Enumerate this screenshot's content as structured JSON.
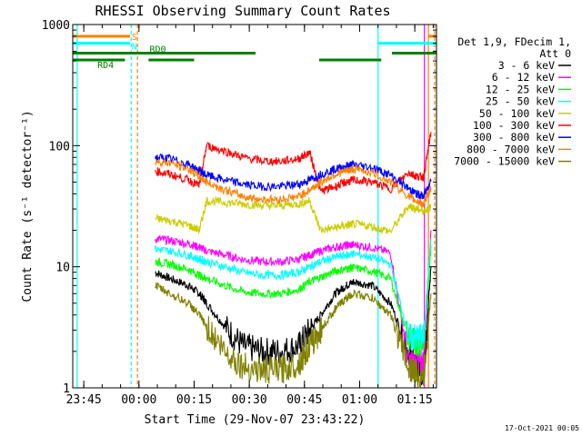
{
  "chart_data": {
    "type": "line",
    "title": "RHESSI Observing Summary Count Rates",
    "xlabel": "Start Time (29-Nov-07 23:43:22)",
    "ylabel": "Count Rate (s⁻¹ detector⁻¹)",
    "yscale": "log",
    "ylim": [
      1,
      1000
    ],
    "xlim_minutes": [
      -1.4,
      97.5
    ],
    "yticks": [
      1,
      10,
      100,
      1000
    ],
    "ytick_labels": [
      "1",
      "10",
      "100",
      "1000"
    ],
    "xticks_minutes": [
      1.6,
      16.6,
      31.6,
      46.6,
      61.6,
      76.6,
      91.6
    ],
    "xtick_labels": [
      "23:45",
      "00:00",
      "00:15",
      "00:30",
      "00:45",
      "01:00",
      "01:15"
    ],
    "grid": false,
    "legend_position": "right",
    "legend_header": [
      "Det 1,9, FDecim 1,",
      "Att 0"
    ],
    "series": [
      {
        "name": "3 - 6 keV",
        "color": "#000000",
        "x": [
          21,
          25,
          30,
          33,
          35,
          40,
          45,
          50,
          55,
          60,
          63,
          66,
          70,
          73,
          75,
          80,
          85,
          90,
          92,
          94,
          96
        ],
        "y": [
          9,
          8,
          7,
          6,
          5,
          3.2,
          2.2,
          2,
          2,
          2.2,
          3,
          4,
          6,
          7,
          7.5,
          7,
          5,
          2,
          1.5,
          1.3,
          10
        ]
      },
      {
        "name": "6 - 12 keV",
        "color": "#ff00ff",
        "x": [
          21,
          25,
          30,
          33,
          35,
          40,
          45,
          50,
          55,
          60,
          63,
          66,
          70,
          73,
          75,
          80,
          85,
          90,
          92,
          94,
          96
        ],
        "y": [
          17,
          16.5,
          15.5,
          14.5,
          13.5,
          12.5,
          11.5,
          11,
          11,
          11.5,
          12.5,
          13.5,
          14.5,
          15,
          15.2,
          14.5,
          13,
          1.6,
          1.6,
          1.6,
          20
        ]
      },
      {
        "name": "12 - 25 keV",
        "color": "#00ff00",
        "x": [
          21,
          25,
          30,
          33,
          35,
          40,
          45,
          50,
          55,
          60,
          63,
          66,
          70,
          73,
          75,
          80,
          85,
          90,
          92,
          94,
          96
        ],
        "y": [
          11,
          10.5,
          9.5,
          8.5,
          8,
          7,
          6.2,
          6,
          6,
          6.5,
          7.5,
          8.2,
          9.2,
          9.6,
          9.8,
          9.2,
          8,
          2.5,
          2.4,
          2.3,
          15
        ]
      },
      {
        "name": "25 - 50 keV",
        "color": "#00ffff",
        "x": [
          21,
          25,
          30,
          33,
          35,
          40,
          45,
          50,
          55,
          60,
          63,
          66,
          70,
          73,
          75,
          80,
          85,
          90,
          92,
          94,
          96
        ],
        "y": [
          14,
          13.5,
          12.5,
          11.5,
          11,
          10,
          9,
          8.5,
          8.5,
          9,
          10,
          11,
          12,
          12.5,
          12.8,
          12,
          10.5,
          2.6,
          2.6,
          2.6,
          17
        ]
      },
      {
        "name": "50 - 100 keV",
        "color": "#cccc00",
        "x": [
          21,
          25,
          30,
          33,
          35,
          40,
          45,
          50,
          55,
          60,
          63,
          66,
          70,
          73,
          75,
          80,
          85,
          90,
          92,
          94,
          96
        ],
        "y": [
          25,
          24,
          22,
          20,
          35,
          34,
          33,
          32,
          32,
          33,
          35,
          20,
          21,
          22,
          22.5,
          21.5,
          19.5,
          32,
          30,
          29,
          31
        ]
      },
      {
        "name": "100 - 300 keV",
        "color": "#ff0000",
        "x": [
          21,
          25,
          30,
          33,
          35,
          40,
          45,
          50,
          55,
          60,
          63,
          66,
          70,
          73,
          75,
          80,
          85,
          90,
          92,
          94,
          96
        ],
        "y": [
          62,
          58,
          52,
          47,
          100,
          90,
          80,
          75,
          74,
          78,
          88,
          42,
          46,
          50,
          52,
          50,
          44,
          60,
          56,
          55,
          130
        ]
      },
      {
        "name": "300 - 800 keV",
        "color": "#0000ff",
        "x": [
          21,
          25,
          30,
          33,
          35,
          40,
          45,
          50,
          55,
          60,
          63,
          66,
          70,
          73,
          75,
          80,
          85,
          90,
          92,
          94,
          96
        ],
        "y": [
          80,
          78,
          70,
          62,
          57,
          52,
          48,
          46,
          46,
          48,
          52,
          58,
          64,
          68,
          70,
          66,
          57,
          44,
          40,
          38,
          52
        ]
      },
      {
        "name": "800 - 7000 keV",
        "color": "#ff8000",
        "x": [
          21,
          25,
          30,
          33,
          35,
          40,
          45,
          50,
          55,
          60,
          63,
          66,
          70,
          73,
          75,
          80,
          85,
          90,
          92,
          94,
          96
        ],
        "y": [
          74,
          72,
          64,
          56,
          50,
          43,
          38,
          36,
          36,
          38,
          43,
          50,
          58,
          62,
          64,
          60,
          50,
          38,
          35,
          33,
          45
        ]
      },
      {
        "name": "7000 - 15000 keV",
        "color": "#808000",
        "x": [
          21,
          25,
          30,
          33,
          35,
          40,
          45,
          50,
          55,
          60,
          63,
          66,
          70,
          73,
          75,
          80,
          85,
          90,
          92,
          94,
          96
        ],
        "y": [
          7,
          6,
          5,
          4,
          3.2,
          2,
          1.5,
          1.4,
          1.4,
          1.6,
          2.2,
          3,
          4.5,
          5.5,
          6,
          5.5,
          4,
          1.5,
          1.3,
          1.2,
          6
        ]
      }
    ],
    "flag_bars": [
      {
        "label": "S",
        "color": "#ff8000",
        "y": 800,
        "segments": [
          [
            -1.4,
            14.2
          ],
          [
            95.3,
            97.5
          ]
        ]
      },
      {
        "label": "N",
        "color": "#00ffff",
        "y": 700,
        "segments": [
          [
            -1.4,
            14.2
          ],
          [
            81.6,
            97.5
          ]
        ]
      },
      {
        "label": "RD0",
        "color": "#008000",
        "y": 580,
        "segments": [
          [
            -1.4,
            48.3
          ],
          [
            85.4,
            97.5
          ]
        ]
      },
      {
        "label": "RD4",
        "color": "#008000",
        "y": 510,
        "segments": [
          [
            -1.4,
            12.8
          ],
          [
            19.2,
            31.6
          ],
          [
            65.6,
            82.5
          ]
        ]
      }
    ],
    "vertical_lines": [
      {
        "x": -0.2,
        "color": "#00ffff",
        "style": "solid"
      },
      {
        "x": 14.5,
        "color": "#00ffff",
        "style": "dashed"
      },
      {
        "x": 16.2,
        "color": "#ff8000",
        "style": "dashed"
      },
      {
        "x": 81.6,
        "color": "#00ffff",
        "style": "solid"
      },
      {
        "x": 95.3,
        "color": "#ff8000",
        "style": "solid"
      },
      {
        "x": 97.0,
        "color": "#ff8000",
        "style": "dashed"
      },
      {
        "x": 94.2,
        "color": "#ff00ff",
        "style": "solid"
      }
    ],
    "footer_timestamp": "17-Oct-2021 00:05"
  }
}
